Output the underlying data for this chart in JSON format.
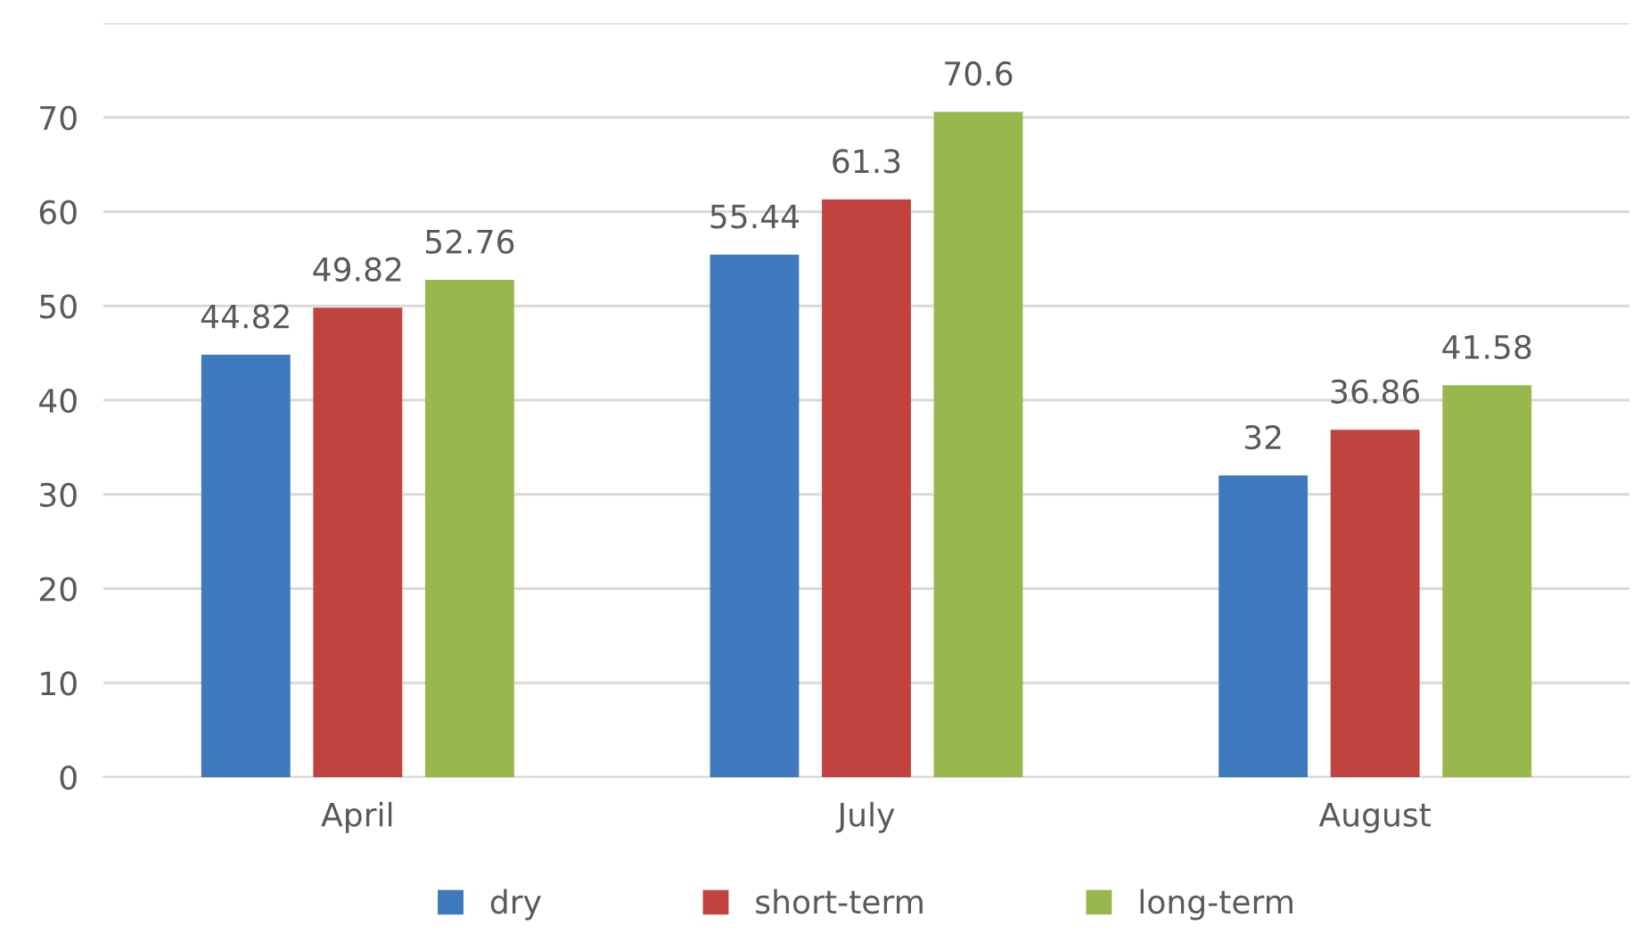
{
  "chart_data": {
    "type": "bar",
    "categories": [
      "April",
      "July",
      "August"
    ],
    "series": [
      {
        "name": "dry",
        "color": "#3f7abf",
        "values": [
          44.82,
          55.44,
          32
        ]
      },
      {
        "name": "short-term",
        "color": "#c0433f",
        "values": [
          49.82,
          61.3,
          36.86
        ]
      },
      {
        "name": "long-term",
        "color": "#98b84d",
        "values": [
          52.76,
          70.6,
          41.58
        ]
      }
    ],
    "ylim": [
      0,
      80
    ],
    "yticks": [
      0,
      10,
      20,
      30,
      40,
      50,
      60,
      70,
      {
        "value": 80,
        "label": null
      }
    ],
    "grid": "y",
    "legend": "bottom",
    "data_labels": true
  }
}
